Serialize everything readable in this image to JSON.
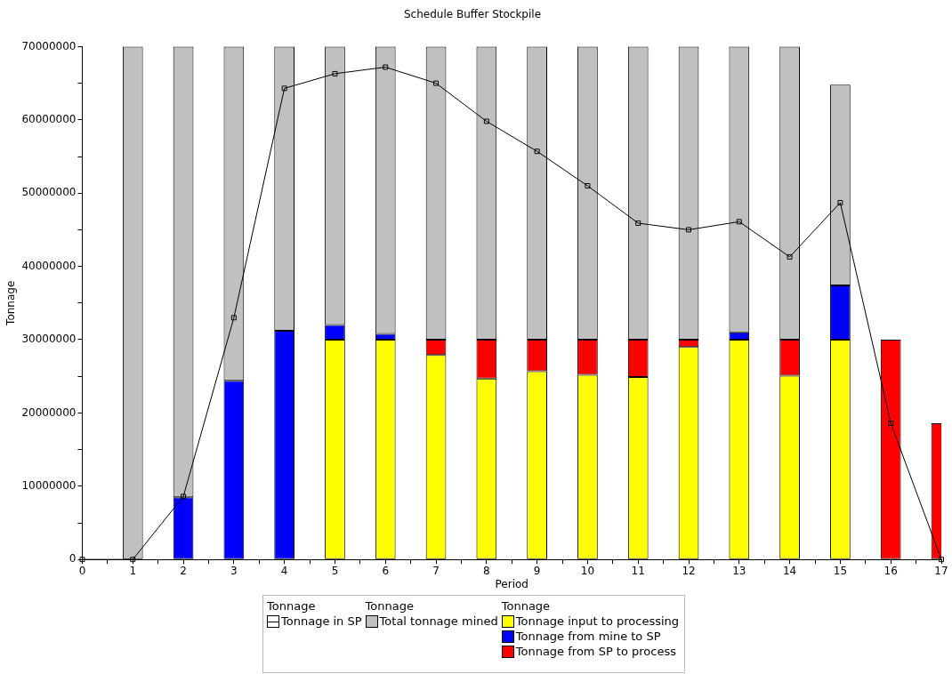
{
  "chart_data": {
    "type": "bar",
    "title": "Schedule Buffer Stockpile",
    "xlabel": "Period",
    "ylabel": "Tonnage",
    "legend_title": "Tonnage",
    "legend": "bottom",
    "stacked": true,
    "grid": false,
    "x": [
      1,
      2,
      3,
      4,
      5,
      6,
      7,
      8,
      9,
      10,
      11,
      12,
      13,
      14,
      15,
      16,
      17
    ],
    "xlim": [
      0,
      17
    ],
    "xticks": [
      0,
      {
        "value": 0.5,
        "label": null
      },
      1,
      {
        "value": 1.5,
        "label": null
      },
      2,
      {
        "value": 2.5,
        "label": null
      },
      3,
      {
        "value": 3.5,
        "label": null
      },
      4,
      {
        "value": 4.5,
        "label": null
      },
      5,
      {
        "value": 5.5,
        "label": null
      },
      6,
      {
        "value": 6.5,
        "label": null
      },
      7,
      {
        "value": 7.5,
        "label": null
      },
      8,
      {
        "value": 8.5,
        "label": null
      },
      9,
      {
        "value": 9.5,
        "label": null
      },
      10,
      {
        "value": 10.5,
        "label": null
      },
      11,
      {
        "value": 11.5,
        "label": null
      },
      12,
      {
        "value": 12.5,
        "label": null
      },
      13,
      {
        "value": 13.5,
        "label": null
      },
      14,
      {
        "value": 14.5,
        "label": null
      },
      15,
      {
        "value": 15.5,
        "label": null
      },
      16,
      {
        "value": 16.5,
        "label": null
      },
      17
    ],
    "ylim": [
      0,
      70000000
    ],
    "yticks": [
      0,
      {
        "value": 5000000,
        "label": null
      },
      10000000,
      {
        "value": 15000000,
        "label": null
      },
      20000000,
      {
        "value": 25000000,
        "label": null
      },
      30000000,
      {
        "value": 35000000,
        "label": null
      },
      40000000,
      {
        "value": 45000000,
        "label": null
      },
      50000000,
      {
        "value": 55000000,
        "label": null
      },
      60000000,
      {
        "value": 65000000,
        "label": null
      },
      70000000
    ],
    "series": [
      {
        "name": "Tonnage in SP",
        "type": "line",
        "color": "#000000",
        "marker": "square",
        "line_style": "solid",
        "x": [
          0,
          1,
          2,
          3,
          4,
          5,
          6,
          7,
          8,
          9,
          10,
          11,
          12,
          13,
          14,
          15,
          16,
          17
        ],
        "values": [
          0,
          0,
          8600000,
          33000000,
          64300000,
          66300000,
          67200000,
          65000000,
          59800000,
          55700000,
          51000000,
          45900000,
          45000000,
          46100000,
          41300000,
          48700000,
          18600000,
          0
        ]
      },
      {
        "name": "Tonnage input to processing",
        "color": "#ffff00",
        "values": [
          null,
          null,
          null,
          null,
          30000000,
          30000000,
          27900000,
          24700000,
          25700000,
          25200000,
          24900000,
          29000000,
          30000000,
          25100000,
          30000000,
          null,
          null
        ]
      },
      {
        "name": "Tonnage from mine to SP",
        "color": "#0000ff",
        "values": [
          null,
          8500000,
          24400000,
          31200000,
          2000000,
          800000,
          null,
          null,
          null,
          null,
          null,
          null,
          1000000,
          null,
          7400000,
          null,
          null
        ]
      },
      {
        "name": "Tonnage from SP to process",
        "color": "#ff0000",
        "values": [
          null,
          null,
          null,
          null,
          null,
          null,
          2100000,
          5300000,
          4300000,
          4800000,
          5100000,
          1000000,
          null,
          4900000,
          null,
          30000000,
          18600000
        ]
      },
      {
        "name": "Total tonnage mined",
        "color": "#c0c0c0",
        "values": [
          70000000,
          61500000,
          45600000,
          38800000,
          38000000,
          39200000,
          40000000,
          40000000,
          40000000,
          40000000,
          40000000,
          40000000,
          39000000,
          40000000,
          27400000,
          null,
          null
        ]
      }
    ]
  }
}
